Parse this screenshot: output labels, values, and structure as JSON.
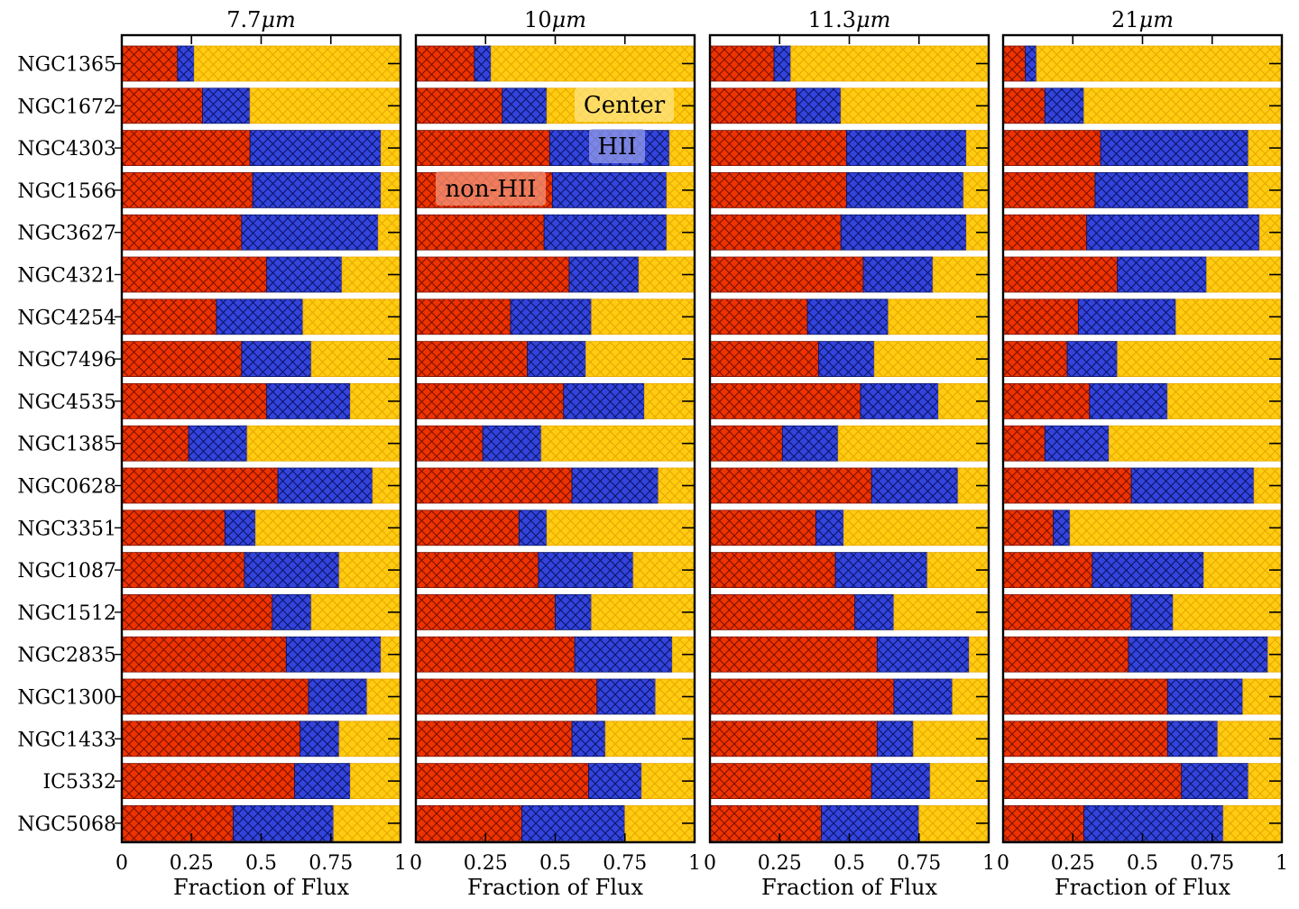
{
  "chart_data": {
    "type": "bar",
    "orientation": "horizontal",
    "stacked": true,
    "xlabel": "Fraction of Flux",
    "xlim": [
      0,
      1
    ],
    "xtick_labels": [
      "0",
      "0.25",
      "0.5",
      "0.75",
      "1"
    ],
    "xtick_values": [
      0,
      0.25,
      0.5,
      0.75,
      1
    ],
    "categories": [
      "NGC1365",
      "NGC1672",
      "NGC4303",
      "NGC1566",
      "NGC3627",
      "NGC4321",
      "NGC4254",
      "NGC7496",
      "NGC4535",
      "NGC1385",
      "NGC0628",
      "NGC3351",
      "NGC1087",
      "NGC1512",
      "NGC2835",
      "NGC1300",
      "NGC1433",
      "IC5332",
      "NGC5068"
    ],
    "series_names": [
      "non-HII",
      "HII",
      "Center"
    ],
    "colors": {
      "non-HII": "#ee3300",
      "HII": "#3344dd",
      "Center": "#ffcc11",
      "hatch_non-HII": "#7a1000",
      "hatch_HII": "#0a1466",
      "hatch_Center": "#e8a800"
    },
    "legend": {
      "panel": 1,
      "entries": [
        {
          "label": "Center",
          "series": "Center",
          "placement": "upper-right"
        },
        {
          "label": "HII",
          "series": "HII",
          "placement": "right"
        },
        {
          "label": "non-HII",
          "series": "non-HII",
          "placement": "left"
        }
      ]
    },
    "panels": [
      {
        "title": "7.7μm",
        "title_base": "7.7",
        "title_unit": "μm",
        "series": [
          {
            "name": "non-HII",
            "values": [
              0.2,
              0.29,
              0.46,
              0.47,
              0.43,
              0.52,
              0.34,
              0.43,
              0.52,
              0.24,
              0.56,
              0.37,
              0.44,
              0.54,
              0.59,
              0.67,
              0.64,
              0.62,
              0.4
            ]
          },
          {
            "name": "HII",
            "values": [
              0.06,
              0.17,
              0.47,
              0.46,
              0.49,
              0.27,
              0.31,
              0.25,
              0.3,
              0.21,
              0.34,
              0.11,
              0.34,
              0.14,
              0.34,
              0.21,
              0.14,
              0.2,
              0.36
            ]
          },
          {
            "name": "Center",
            "values": [
              0.74,
              0.54,
              0.07,
              0.07,
              0.08,
              0.21,
              0.35,
              0.32,
              0.18,
              0.55,
              0.1,
              0.52,
              0.22,
              0.32,
              0.07,
              0.12,
              0.22,
              0.18,
              0.24
            ]
          }
        ]
      },
      {
        "title": "10μm",
        "title_base": "10",
        "title_unit": "μm",
        "series": [
          {
            "name": "non-HII",
            "values": [
              0.21,
              0.31,
              0.48,
              0.49,
              0.46,
              0.55,
              0.34,
              0.4,
              0.53,
              0.24,
              0.56,
              0.37,
              0.44,
              0.5,
              0.57,
              0.65,
              0.56,
              0.62,
              0.38
            ]
          },
          {
            "name": "HII",
            "values": [
              0.06,
              0.16,
              0.43,
              0.41,
              0.44,
              0.25,
              0.29,
              0.21,
              0.29,
              0.21,
              0.31,
              0.1,
              0.34,
              0.13,
              0.35,
              0.21,
              0.12,
              0.19,
              0.37
            ]
          },
          {
            "name": "Center",
            "values": [
              0.73,
              0.53,
              0.09,
              0.1,
              0.1,
              0.2,
              0.37,
              0.39,
              0.18,
              0.55,
              0.13,
              0.53,
              0.22,
              0.37,
              0.08,
              0.14,
              0.32,
              0.19,
              0.25
            ]
          }
        ]
      },
      {
        "title": "11.3μm",
        "title_base": "11.3",
        "title_unit": "μm",
        "series": [
          {
            "name": "non-HII",
            "values": [
              0.23,
              0.31,
              0.49,
              0.49,
              0.47,
              0.55,
              0.35,
              0.39,
              0.54,
              0.26,
              0.58,
              0.38,
              0.45,
              0.52,
              0.6,
              0.66,
              0.6,
              0.58,
              0.4
            ]
          },
          {
            "name": "HII",
            "values": [
              0.06,
              0.16,
              0.43,
              0.42,
              0.45,
              0.25,
              0.29,
              0.2,
              0.28,
              0.2,
              0.31,
              0.1,
              0.33,
              0.14,
              0.33,
              0.21,
              0.13,
              0.21,
              0.35
            ]
          },
          {
            "name": "Center",
            "values": [
              0.71,
              0.53,
              0.08,
              0.09,
              0.08,
              0.2,
              0.36,
              0.41,
              0.18,
              0.54,
              0.11,
              0.52,
              0.22,
              0.34,
              0.07,
              0.13,
              0.27,
              0.21,
              0.25
            ]
          }
        ]
      },
      {
        "title": "21μm",
        "title_base": "21",
        "title_unit": "μm",
        "series": [
          {
            "name": "non-HII",
            "values": [
              0.08,
              0.15,
              0.35,
              0.33,
              0.3,
              0.41,
              0.27,
              0.23,
              0.31,
              0.15,
              0.46,
              0.18,
              0.32,
              0.46,
              0.45,
              0.59,
              0.59,
              0.64,
              0.29
            ]
          },
          {
            "name": "HII",
            "values": [
              0.04,
              0.14,
              0.53,
              0.55,
              0.62,
              0.32,
              0.35,
              0.18,
              0.28,
              0.23,
              0.44,
              0.06,
              0.4,
              0.15,
              0.5,
              0.27,
              0.18,
              0.24,
              0.5
            ]
          },
          {
            "name": "Center",
            "values": [
              0.88,
              0.71,
              0.12,
              0.12,
              0.08,
              0.27,
              0.38,
              0.59,
              0.41,
              0.62,
              0.1,
              0.76,
              0.28,
              0.39,
              0.05,
              0.14,
              0.23,
              0.12,
              0.21
            ]
          }
        ]
      }
    ]
  }
}
